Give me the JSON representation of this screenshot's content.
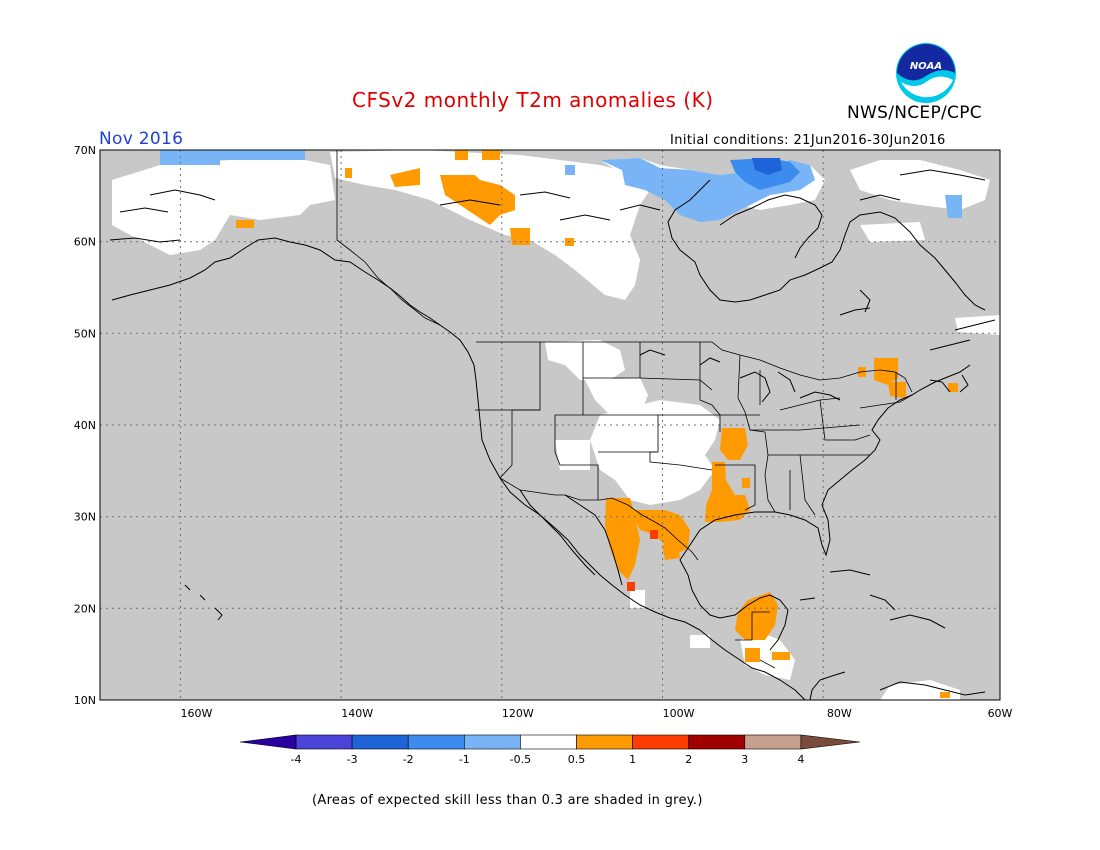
{
  "header": {
    "title": "CFSv2 monthly T2m anomalies (K)",
    "title_color": "#e00000",
    "org": "NWS/NCEP/CPC",
    "logo_text": "NOAA"
  },
  "map": {
    "period": "Nov 2016",
    "period_color": "#2040d0",
    "initial_conditions": "Initial conditions: 21Jun2016-30Jun2016",
    "lat_labels": [
      "70N",
      "60N",
      "50N",
      "40N",
      "30N",
      "20N",
      "10N"
    ],
    "lon_labels": [
      "160W",
      "140W",
      "120W",
      "100W",
      "80W",
      "60W"
    ],
    "extent": {
      "lon": [
        -172,
        -60
      ],
      "lat": [
        10,
        70
      ]
    },
    "masked_color": "#c8c8c8"
  },
  "legend": {
    "tick_labels": [
      "-4",
      "-3",
      "-2",
      "-1",
      "-0.5",
      "0.5",
      "1",
      "2",
      "3",
      "4"
    ],
    "colors": [
      "#2a00a0",
      "#4a44d8",
      "#1e64d8",
      "#3c8cf0",
      "#78b4f6",
      "#ffffff",
      "#ff9a00",
      "#ff3c00",
      "#a00000",
      "#c8a090",
      "#7a4a3a"
    ]
  },
  "footnote": "(Areas of expected skill less than 0.3 are shaded in grey.)"
}
